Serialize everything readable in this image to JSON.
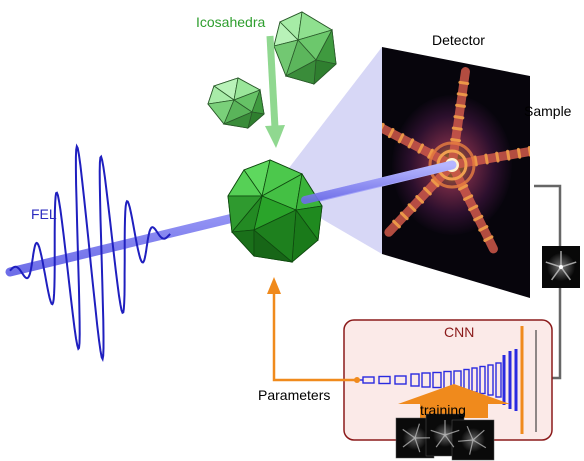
{
  "labels": {
    "icosahedra": "Icosahedra",
    "detector": "Detector",
    "sample": "Sample",
    "fel": "FEL",
    "cnn": "CNN",
    "parameters": "Parameters",
    "training": "training"
  },
  "colors": {
    "icosahedra_text": "#2e9e2e",
    "fel_text": "#2b2bbf",
    "cnn_text": "#8b1a1a",
    "cnn_box_border": "#8b1a1a",
    "cnn_box_fill": "#fbeae8",
    "beam": "#8f8ff0",
    "pulse": "#1f1fbf",
    "cnn_layers": "#2a2ae0",
    "orange": "#f08a1c",
    "gray_line": "#666666"
  },
  "icons": [
    "large-green-icosahedron",
    "small-green-icosahedron",
    "central-sample-icosahedron",
    "diffraction-pattern",
    "thumbnail-pattern"
  ]
}
